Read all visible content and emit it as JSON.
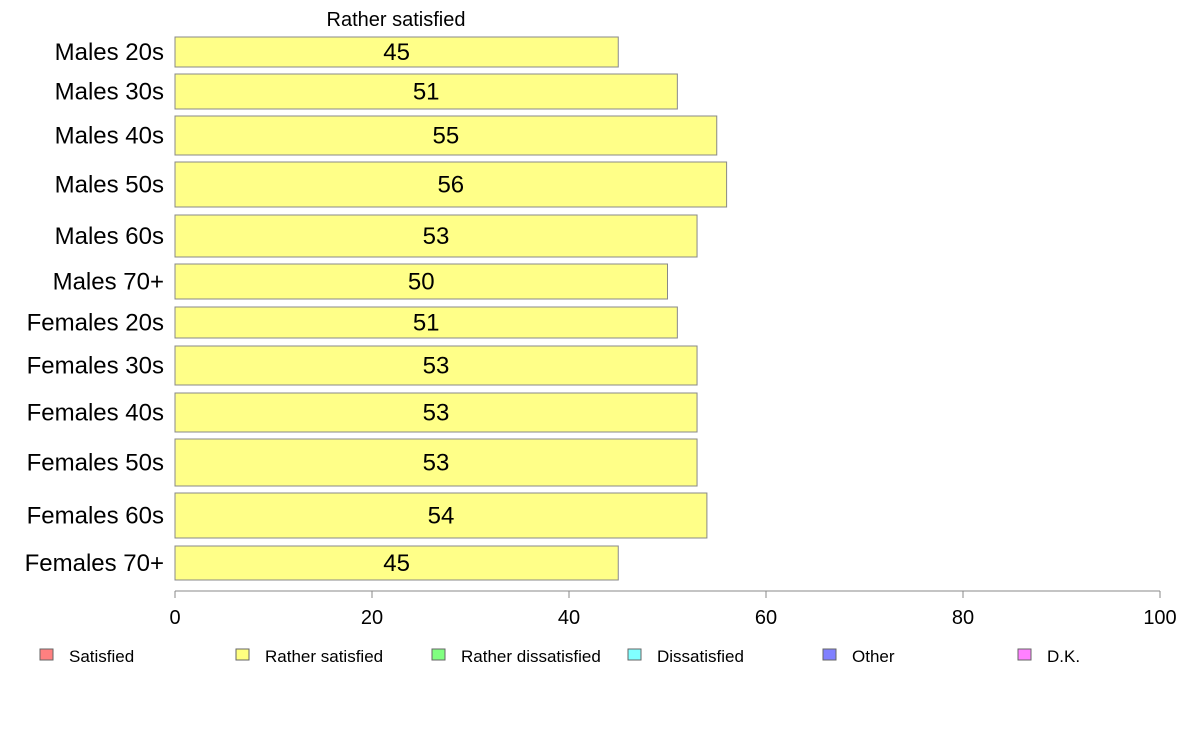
{
  "chart_data": {
    "type": "bar",
    "orientation": "horizontal",
    "title": "",
    "xlabel": "",
    "ylabel": "",
    "series_header": "Rather satisfied",
    "categories": [
      "Males 20s",
      "Males 30s",
      "Males 40s",
      "Males 50s",
      "Males 60s",
      "Males 70+",
      "Females 20s",
      "Females 30s",
      "Females 40s",
      "Females 50s",
      "Females 60s",
      "Females 70+"
    ],
    "series": [
      {
        "name": "Rather satisfied",
        "color": "#ffff88",
        "values": [
          45,
          51,
          55,
          56,
          53,
          50,
          51,
          53,
          53,
          53,
          54,
          45
        ]
      }
    ],
    "value_labels": [
      "45",
      "51",
      "55",
      "56",
      "53",
      "50",
      "51",
      "53",
      "53",
      "53",
      "54",
      "45"
    ],
    "xlim": [
      0,
      100
    ],
    "xticks": [
      0,
      20,
      40,
      60,
      80,
      100
    ],
    "grid": false,
    "legend": {
      "placement": "bottom",
      "items": [
        {
          "label": "Satisfied",
          "color": "#ff8080"
        },
        {
          "label": "Rather satisfied",
          "color": "#ffff80"
        },
        {
          "label": "Rather dissatisfied",
          "color": "#80ff80"
        },
        {
          "label": "Dissatisfied",
          "color": "#80ffff"
        },
        {
          "label": "Other",
          "color": "#8080ff"
        },
        {
          "label": "D.K.",
          "color": "#ff80ff"
        }
      ]
    }
  }
}
